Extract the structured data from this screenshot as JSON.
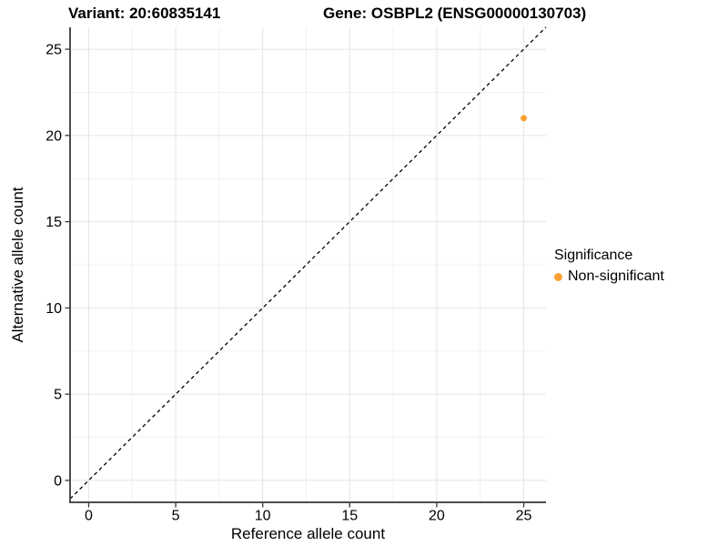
{
  "figure": {
    "title_left": "Variant: 20:60835141",
    "title_right": "Gene: OSBPL2 (ENSG00000130703)"
  },
  "chart_data": {
    "type": "scatter",
    "title_left": "Variant: 20:60835141",
    "title_right": "Gene: OSBPL2 (ENSG00000130703)",
    "xlabel": "Reference allele count",
    "ylabel": "Alternative allele count",
    "xlim": [
      -1.07,
      26.28
    ],
    "ylim": [
      -1.27,
      26.27
    ],
    "xticks": [
      0,
      5,
      10,
      15,
      20,
      25
    ],
    "yticks": [
      0,
      5,
      10,
      15,
      20,
      25
    ],
    "minor_ticks_x": [
      2.5,
      7.5,
      12.5,
      17.5,
      22.5
    ],
    "minor_ticks_y": [
      2.5,
      7.5,
      12.5,
      17.5,
      22.5
    ],
    "grid": true,
    "reference_line": {
      "type": "identity y=x",
      "style": "dashed",
      "from": [
        -1.07,
        -1.07
      ],
      "to": [
        26.28,
        26.28
      ],
      "color": "#000000"
    },
    "series": [
      {
        "name": "Non-significant",
        "color": "#F9A232",
        "marker": "circle",
        "points": [
          {
            "x": 25,
            "y": 21
          }
        ]
      }
    ],
    "legend": {
      "title": "Significance",
      "position": "right",
      "items": [
        {
          "label": "Non-significant",
          "color": "#F9A232",
          "marker": "circle-icon"
        }
      ]
    }
  },
  "colors": {
    "background": "#FFFFFF",
    "axis_line": "#4D4D4D",
    "tick_mark": "#333333",
    "tick_label": "#000000",
    "grid_major": "#E4E4E4",
    "grid_minor": "#F1F1F1",
    "point": "#F9A232"
  }
}
